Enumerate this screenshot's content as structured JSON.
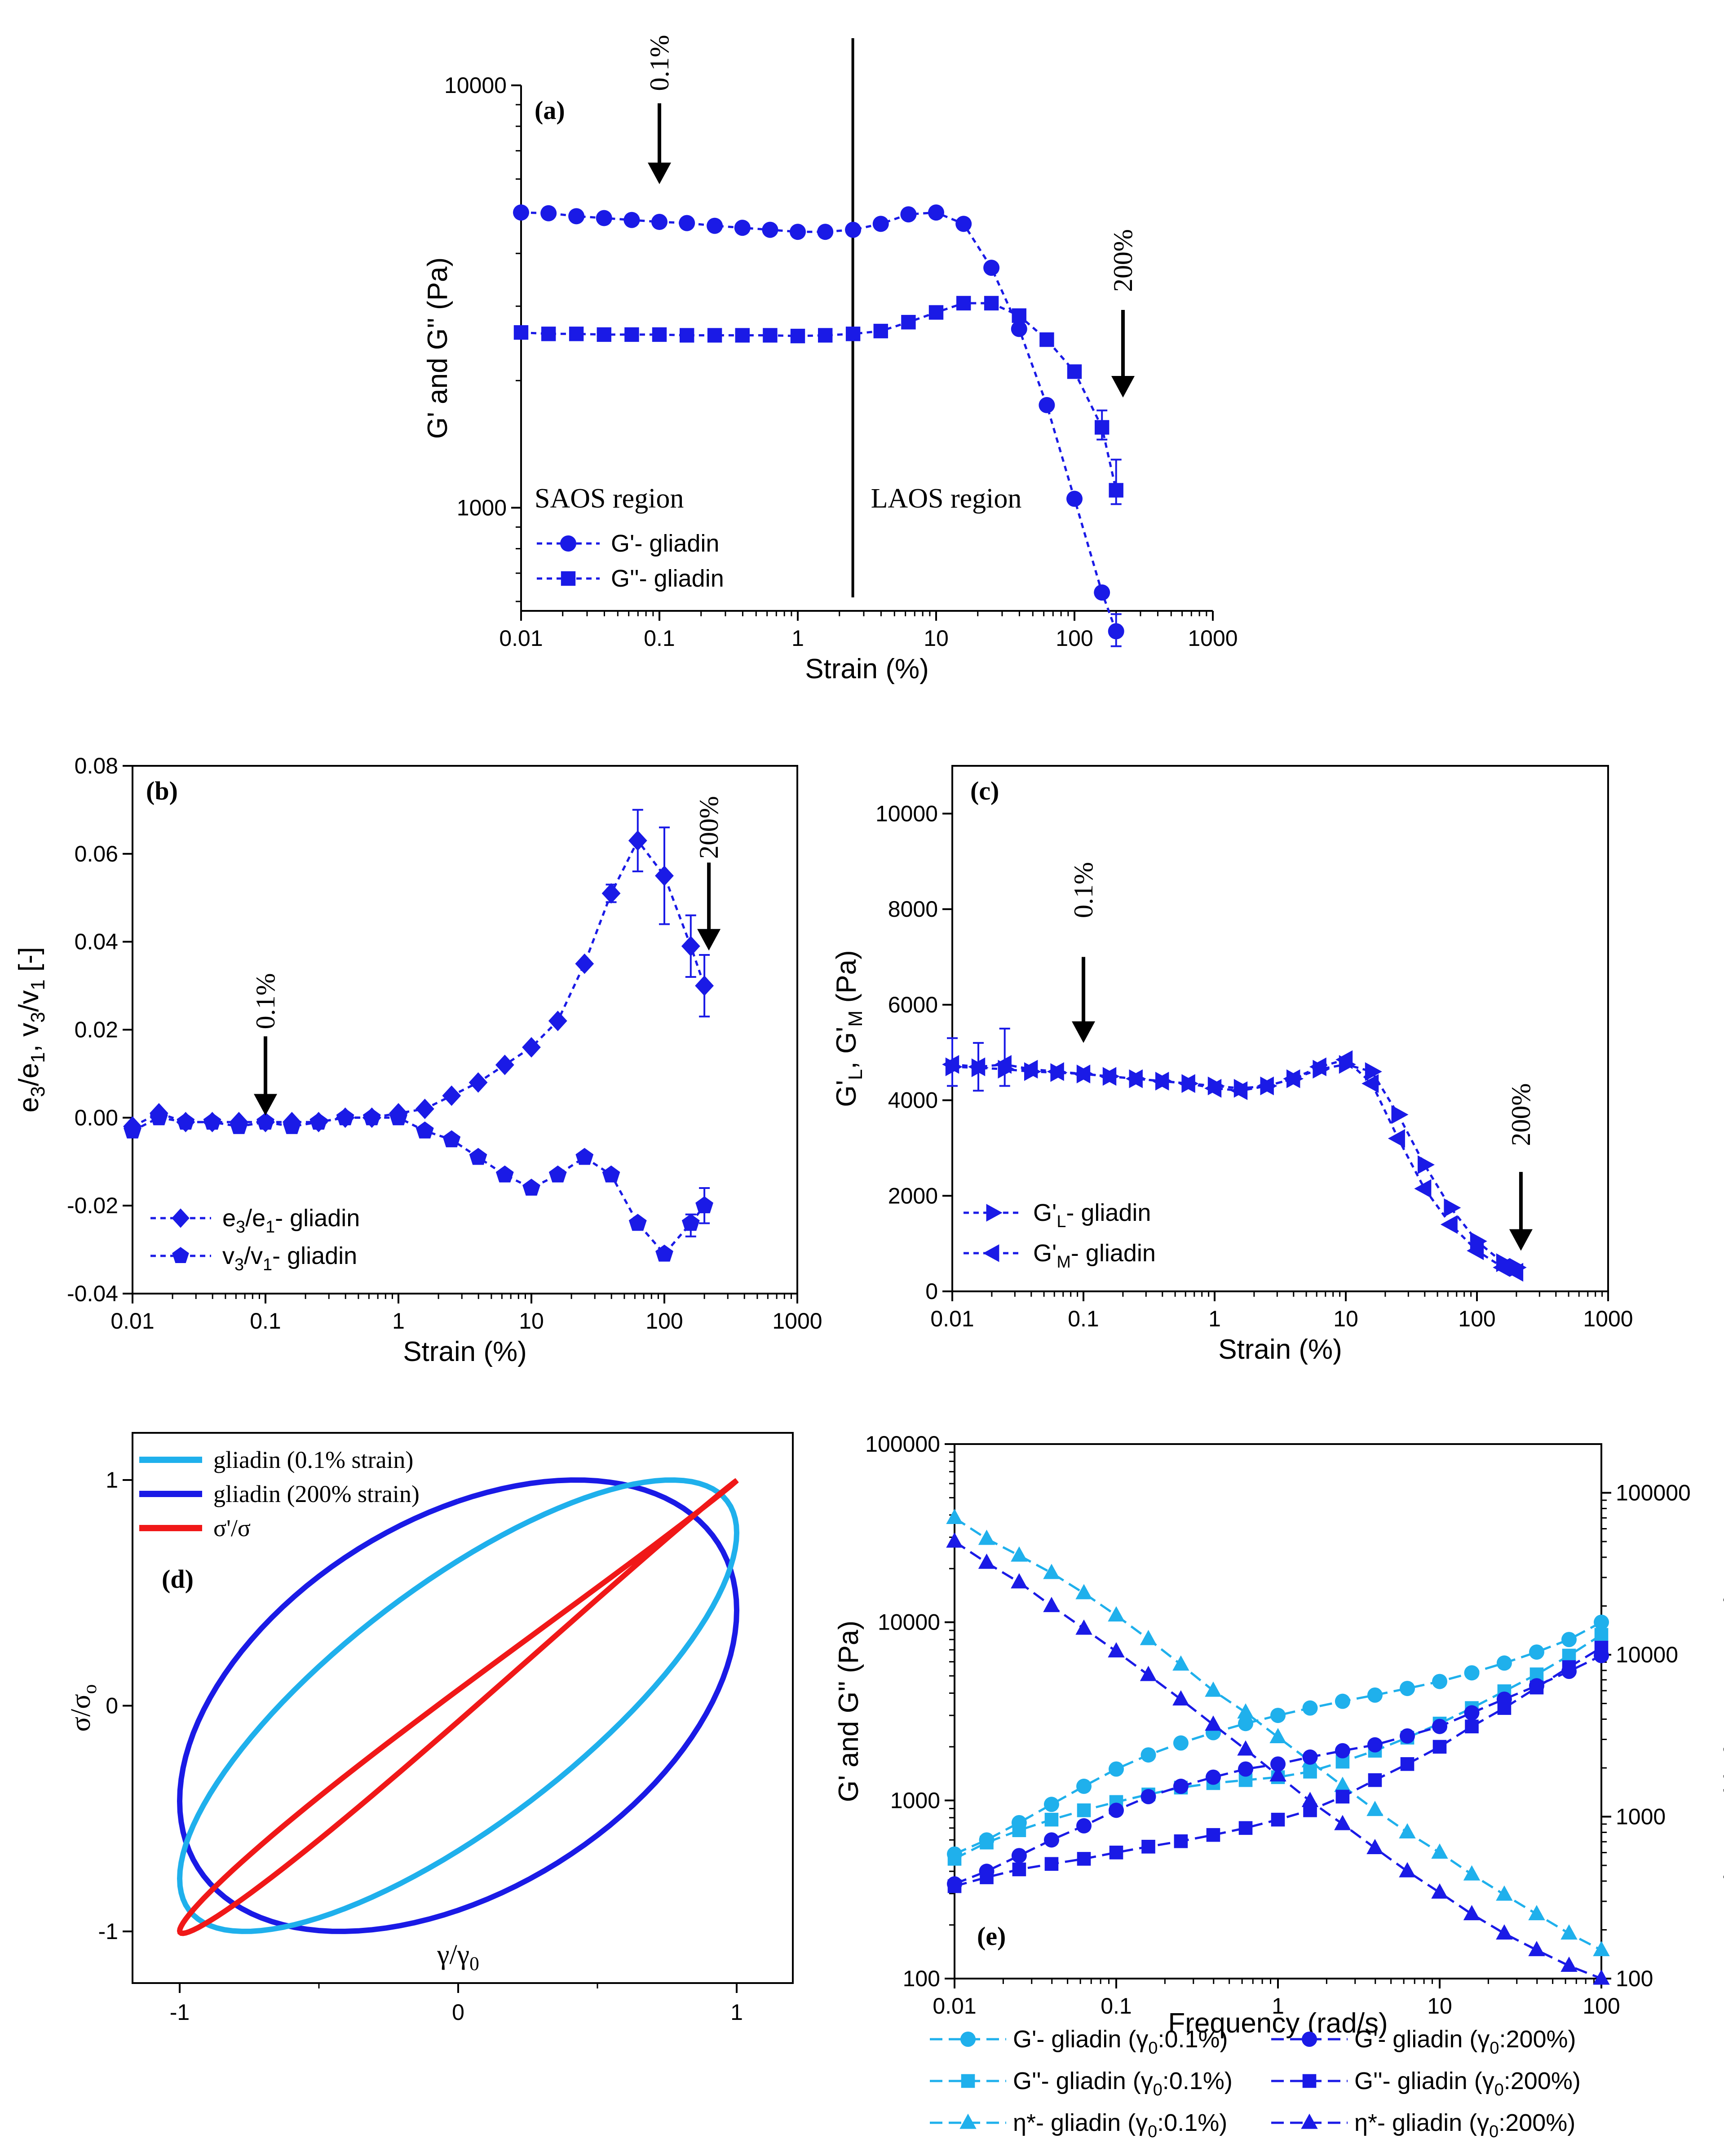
{
  "colors": {
    "dark": "#1a1ae6",
    "light": "#1fb0ec",
    "red": "#f01818",
    "black": "#000000"
  },
  "chart_data": [
    {
      "id": "a",
      "panel_label": "(a)",
      "type": "scatter",
      "xscale": "log",
      "yscale": "log",
      "xlabel": "Strain (%)",
      "ylabel": "G' and G'' (Pa)",
      "xlim": [
        0.01,
        1000
      ],
      "ylim": [
        570,
        10000
      ],
      "xticks": [
        0.01,
        0.1,
        1,
        10,
        100,
        1000
      ],
      "xticklabels": [
        "0.01",
        "0.1",
        "1",
        "10",
        "100",
        "1000"
      ],
      "yticks": [
        1000,
        10000
      ],
      "yticklabels": [
        "1000",
        "10000"
      ],
      "series": [
        {
          "name": "G'- gliadin",
          "marker": "circle",
          "x": [
            0.01,
            0.0158,
            0.0251,
            0.0398,
            0.0631,
            0.1,
            0.158,
            0.251,
            0.398,
            0.631,
            1,
            1.58,
            2.51,
            3.98,
            6.31,
            10,
            15.8,
            25.1,
            39.8,
            63.1,
            100,
            158,
            200
          ],
          "y": [
            5000,
            4980,
            4900,
            4850,
            4800,
            4750,
            4720,
            4650,
            4600,
            4550,
            4500,
            4500,
            4550,
            4700,
            4950,
            5000,
            4700,
            3700,
            2650,
            1750,
            1050,
            630,
            510
          ]
        },
        {
          "name": "G''- gliadin",
          "marker": "square",
          "x": [
            0.01,
            0.0158,
            0.0251,
            0.0398,
            0.0631,
            0.1,
            0.158,
            0.251,
            0.398,
            0.631,
            1,
            1.58,
            2.51,
            3.98,
            6.31,
            10,
            15.8,
            25.1,
            39.8,
            63.1,
            100,
            158,
            200
          ],
          "y": [
            2600,
            2580,
            2580,
            2570,
            2570,
            2570,
            2560,
            2560,
            2560,
            2560,
            2550,
            2560,
            2580,
            2620,
            2750,
            2900,
            3050,
            3050,
            2850,
            2500,
            2100,
            1550,
            1100
          ]
        }
      ],
      "vline_x": 2.5,
      "region_labels": [
        "SAOS region",
        "LAOS region"
      ],
      "annotations": [
        "0.1%",
        "200%"
      ],
      "legend": [
        "G'- gliadin",
        "G''- gliadin"
      ]
    },
    {
      "id": "b",
      "panel_label": "(b)",
      "type": "line",
      "xscale": "log",
      "xlabel": "Strain (%)",
      "ylabel": "e3/e1, v3/v1 [-]",
      "xlim": [
        0.01,
        1000
      ],
      "ylim": [
        -0.04,
        0.08
      ],
      "xticks": [
        0.01,
        0.1,
        1,
        10,
        100,
        1000
      ],
      "xticklabels": [
        "0.01",
        "0.1",
        "1",
        "10",
        "100",
        "1000"
      ],
      "yticks": [
        -0.04,
        -0.02,
        0,
        0.02,
        0.04,
        0.06,
        0.08
      ],
      "yticklabels": [
        "-0.04",
        "-0.02",
        "0.00",
        "0.02",
        "0.04",
        "0.06",
        "0.08"
      ],
      "series": [
        {
          "name": "e3/e1- gliadin",
          "marker": "diamond",
          "x": [
            0.01,
            0.0158,
            0.0251,
            0.0398,
            0.0631,
            0.1,
            0.158,
            0.251,
            0.398,
            0.631,
            1,
            1.58,
            2.51,
            3.98,
            6.31,
            10,
            15.8,
            25.1,
            39.8,
            63.1,
            100,
            158,
            200
          ],
          "y": [
            -0.002,
            0.001,
            -0.001,
            -0.001,
            -0.001,
            -0.001,
            -0.001,
            -0.001,
            0,
            0,
            0.001,
            0.002,
            0.005,
            0.008,
            0.012,
            0.016,
            0.022,
            0.035,
            0.051,
            0.063,
            0.055,
            0.039,
            0.03
          ]
        },
        {
          "name": "v3/v1- gliadin",
          "marker": "pentagon",
          "x": [
            0.01,
            0.0158,
            0.0251,
            0.0398,
            0.0631,
            0.1,
            0.158,
            0.251,
            0.398,
            0.631,
            1,
            1.58,
            2.51,
            3.98,
            6.31,
            10,
            15.8,
            25.1,
            39.8,
            63.1,
            100,
            158,
            200
          ],
          "y": [
            -0.003,
            0,
            -0.001,
            -0.001,
            -0.002,
            -0.001,
            -0.002,
            -0.001,
            0,
            0,
            0,
            -0.003,
            -0.005,
            -0.009,
            -0.013,
            -0.016,
            -0.013,
            -0.009,
            -0.013,
            -0.024,
            -0.031,
            -0.024,
            -0.02
          ]
        }
      ],
      "annotations": [
        "0.1%",
        "200%"
      ],
      "legend": [
        "e3/e1- gliadin",
        "v3/v1- gliadin"
      ]
    },
    {
      "id": "c",
      "panel_label": "(c)",
      "type": "line",
      "xscale": "log",
      "xlabel": "Strain (%)",
      "ylabel": "G'L, G'M (Pa)",
      "xlim": [
        0.01,
        1000
      ],
      "ylim": [
        0,
        11000
      ],
      "xticks": [
        0.01,
        0.1,
        1,
        10,
        100,
        1000
      ],
      "xticklabels": [
        "0.01",
        "0.1",
        "1",
        "10",
        "100",
        "1000"
      ],
      "yticks": [
        0,
        2000,
        4000,
        6000,
        8000,
        10000
      ],
      "yticklabels": [
        "0",
        "2000",
        "4000",
        "6000",
        "8000",
        "10000"
      ],
      "series": [
        {
          "name": "G'L- gliadin",
          "marker": "triangle-right",
          "x": [
            0.01,
            0.0158,
            0.0251,
            0.0398,
            0.0631,
            0.1,
            0.158,
            0.251,
            0.398,
            0.631,
            1,
            1.58,
            2.51,
            3.98,
            6.31,
            10,
            15.8,
            25.1,
            39.8,
            63.1,
            100,
            158,
            200
          ],
          "y": [
            4700,
            4680,
            4650,
            4600,
            4580,
            4550,
            4500,
            4450,
            4400,
            4350,
            4300,
            4250,
            4300,
            4450,
            4650,
            4750,
            4600,
            3700,
            2650,
            1750,
            1050,
            600,
            500
          ]
        },
        {
          "name": "G'M- gliadin",
          "marker": "triangle-left",
          "x": [
            0.01,
            0.0158,
            0.0251,
            0.0398,
            0.0631,
            0.1,
            0.158,
            0.251,
            0.398,
            0.631,
            1,
            1.58,
            2.51,
            3.98,
            6.31,
            10,
            15.8,
            25.1,
            39.8,
            63.1,
            100,
            158,
            200
          ],
          "y": [
            4750,
            4700,
            4750,
            4650,
            4600,
            4550,
            4500,
            4450,
            4400,
            4350,
            4250,
            4200,
            4300,
            4450,
            4700,
            4850,
            4350,
            3200,
            2150,
            1400,
            850,
            500,
            400
          ]
        }
      ],
      "annotations": [
        "0.1%",
        "200%"
      ],
      "legend": [
        "G'L- gliadin",
        "G'M- gliadin"
      ]
    },
    {
      "id": "d",
      "panel_label": "(d)",
      "type": "line",
      "xlabel": "γ/γ0",
      "ylabel": "σ/σo",
      "xlim": [
        -1.15,
        1.2
      ],
      "ylim": [
        -1.13,
        1.13
      ],
      "xticks": [
        -1,
        0,
        1
      ],
      "xticklabels": [
        "-1",
        "0",
        "1"
      ],
      "yticks": [
        -1,
        0,
        1
      ],
      "yticklabels": [
        "-1",
        "0",
        "1"
      ],
      "series": [
        {
          "name": "gliadin (0.1% strain)",
          "kind": "ellipse",
          "delta_deg": 40
        },
        {
          "name": "gliadin (200% strain)",
          "kind": "ellipse",
          "delta_deg": 65
        },
        {
          "name": "σ'/σ",
          "kind": "loop",
          "delta_deg": 4
        }
      ],
      "legend": [
        "gliadin (0.1% strain)",
        "gliadin (200% strain)",
        "σ'/σ"
      ]
    },
    {
      "id": "e",
      "panel_label": "(e)",
      "type": "line",
      "xscale": "log",
      "yscale": "log",
      "y2scale": "log",
      "xlabel": "Frequency (rad/s)",
      "ylabel": "G' and G'' (Pa)",
      "y2label": "Complex viscosity (η*, Pa.s)",
      "xlim": [
        0.01,
        100
      ],
      "ylim": [
        100,
        100000
      ],
      "y2lim": [
        100,
        200000
      ],
      "xticks": [
        0.01,
        0.1,
        1,
        10,
        100
      ],
      "xticklabels": [
        "0.01",
        "0.1",
        "1",
        "10",
        "100"
      ],
      "yticks": [
        100,
        1000,
        10000,
        100000
      ],
      "yticklabels": [
        "100",
        "1000",
        "10000",
        "100000"
      ],
      "y2ticks": [
        100,
        1000,
        10000,
        100000
      ],
      "y2ticklabels": [
        "100",
        "1000",
        "10000",
        "100000"
      ],
      "x": [
        0.01,
        0.0158,
        0.0251,
        0.0398,
        0.0631,
        0.1,
        0.158,
        0.251,
        0.398,
        0.631,
        1,
        1.58,
        2.51,
        3.98,
        6.31,
        10,
        15.8,
        25.1,
        39.8,
        63.1,
        100
      ],
      "series": [
        {
          "name": "G'- gliadin (γ0:0.1%)",
          "marker": "circle",
          "color": "light",
          "axis": "left",
          "y": [
            500,
            600,
            750,
            950,
            1200,
            1500,
            1800,
            2100,
            2400,
            2700,
            3000,
            3300,
            3600,
            3900,
            4250,
            4650,
            5200,
            5900,
            6800,
            8000,
            10000
          ]
        },
        {
          "name": "G''- gliadin (γ0:0.1%)",
          "marker": "square",
          "color": "light",
          "axis": "left",
          "y": [
            470,
            580,
            680,
            780,
            880,
            980,
            1080,
            1180,
            1250,
            1300,
            1350,
            1450,
            1650,
            1900,
            2250,
            2700,
            3300,
            4100,
            5100,
            6500,
            8500
          ]
        },
        {
          "name": "η*- gliadin (γ0:0.1%)",
          "marker": "triangle",
          "color": "light",
          "axis": "right",
          "y": [
            70000,
            52000,
            41000,
            32000,
            24000,
            17500,
            12500,
            8700,
            6000,
            4400,
            3100,
            2200,
            1550,
            1100,
            800,
            600,
            440,
            330,
            250,
            190,
            150
          ]
        },
        {
          "name": "G'- gliadin (γ0:200%)",
          "marker": "circle",
          "color": "dark",
          "axis": "left",
          "y": [
            340,
            400,
            490,
            600,
            720,
            880,
            1050,
            1200,
            1350,
            1500,
            1600,
            1750,
            1900,
            2050,
            2300,
            2600,
            3100,
            3700,
            4400,
            5300,
            6500
          ]
        },
        {
          "name": "G''- gliadin (γ0:200%)",
          "marker": "square",
          "color": "dark",
          "axis": "left",
          "y": [
            330,
            370,
            410,
            440,
            470,
            510,
            550,
            590,
            640,
            700,
            780,
            880,
            1050,
            1300,
            1600,
            2000,
            2600,
            3300,
            4300,
            5600,
            7200
          ]
        },
        {
          "name": "η*- gliadin (γ0:200%)",
          "marker": "triangle",
          "color": "dark",
          "axis": "right",
          "y": [
            50000,
            37000,
            28000,
            20000,
            14500,
            10500,
            7500,
            5300,
            3700,
            2600,
            1800,
            1250,
            900,
            640,
            460,
            340,
            250,
            190,
            150,
            120,
            100
          ]
        }
      ],
      "legend": [
        "G'- gliadin (γ0:0.1%)",
        "G'- gliadin (γ0:200%)",
        "G''- gliadin (γ0:0.1%)",
        "G''- gliadin (γ0:200%)",
        "η*- gliadin (γ0:0.1%)",
        "η*- gliadin (γ0:200%)"
      ]
    }
  ]
}
